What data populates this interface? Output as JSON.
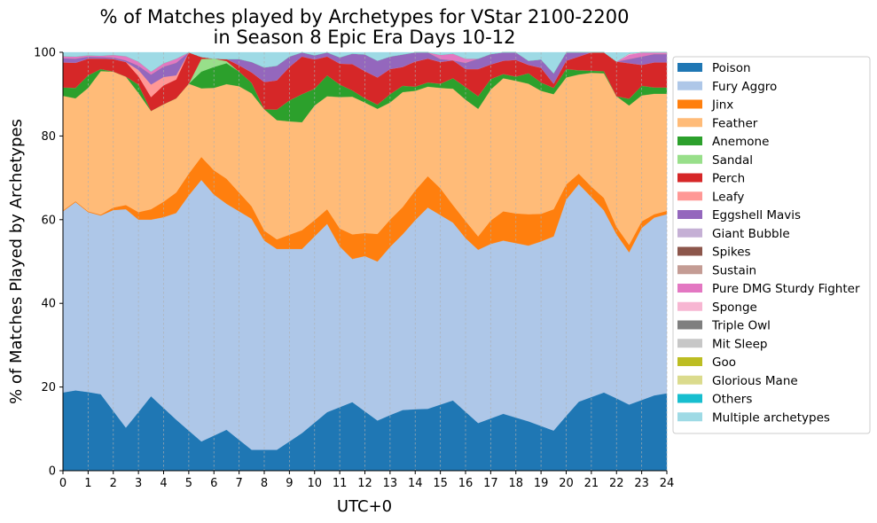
{
  "chart_data": {
    "type": "area",
    "stacked": true,
    "title": [
      "% of Matches played by Archetypes for VStar 2100-2200",
      "in Season 8 Epic Era Days 10-12"
    ],
    "xlabel": "UTC+0",
    "ylabel": "% of Matches Played by Archetypes",
    "xlim": [
      0,
      24
    ],
    "ylim": [
      0,
      100
    ],
    "xticks": [
      0,
      1,
      2,
      3,
      4,
      5,
      6,
      7,
      8,
      9,
      10,
      11,
      12,
      13,
      14,
      15,
      16,
      17,
      18,
      19,
      20,
      21,
      22,
      23,
      24
    ],
    "yticks": [
      0,
      20,
      40,
      60,
      80,
      100
    ],
    "grid": "vertical-dashed",
    "legend_position": "outside-right",
    "x": [
      0,
      0.5,
      1,
      1.5,
      2,
      2.5,
      3,
      3.5,
      4,
      4.5,
      5,
      5.5,
      6,
      6.5,
      7,
      7.5,
      8,
      8.5,
      9,
      9.5,
      10,
      10.5,
      11,
      11.5,
      12,
      12.5,
      13,
      13.5,
      14,
      14.5,
      15,
      15.5,
      16,
      16.5,
      17,
      17.5,
      18,
      18.5,
      19,
      19.5,
      20,
      20.5,
      21,
      21.5,
      22,
      22.5,
      23,
      23.5,
      24
    ],
    "series": [
      {
        "name": "Poison",
        "color": "#1f77b4",
        "values": [
          18.7,
          19.2,
          18.8,
          18.3,
          14.3,
          10.3,
          14.0,
          17.8,
          15.0,
          12.2,
          9.6,
          7.0,
          8.4,
          9.8,
          7.4,
          5.0,
          5.0,
          5.0,
          7.0,
          9.0,
          11.5,
          14.0,
          15.2,
          16.4,
          14.2,
          12.0,
          13.3,
          14.5,
          14.7,
          14.8,
          15.8,
          16.8,
          14.1,
          11.4,
          12.5,
          13.6,
          12.7,
          11.8,
          10.7,
          9.6,
          13.1,
          16.5,
          17.6,
          18.7,
          17.3,
          15.8,
          16.9,
          18.0,
          18.5
        ]
      },
      {
        "name": "Fury Aggro",
        "color": "#aec7e8",
        "values": [
          43.3,
          45.0,
          43.0,
          42.7,
          48.0,
          52.2,
          46.0,
          42.2,
          45.6,
          49.4,
          56.2,
          62.5,
          57.6,
          54.0,
          54.6,
          55.2,
          50.0,
          48.0,
          46.0,
          44.0,
          44.5,
          45.0,
          38.4,
          34.2,
          37.1,
          38.0,
          40.2,
          42.0,
          45.2,
          48.1,
          45.3,
          42.5,
          41.5,
          41.4,
          41.7,
          41.4,
          41.7,
          42.0,
          44.1,
          46.4,
          51.7,
          52.0,
          47.8,
          43.5,
          39.2,
          36.4,
          41.1,
          42.5,
          42.8
        ]
      },
      {
        "name": "Jinx",
        "color": "#ff7f0e",
        "values": [
          0.2,
          0.2,
          0.2,
          0.2,
          0.6,
          1.0,
          1.8,
          2.5,
          3.7,
          4.9,
          5.2,
          5.5,
          5.8,
          6.0,
          4.5,
          3.0,
          2.4,
          2.3,
          3.4,
          4.5,
          3.9,
          3.5,
          4.3,
          5.9,
          5.5,
          6.6,
          6.5,
          6.5,
          7.1,
          7.5,
          6.4,
          4.2,
          4.1,
          3.2,
          5.6,
          7.0,
          7.1,
          7.5,
          6.6,
          6.5,
          3.6,
          2.5,
          2.5,
          3.0,
          1.8,
          1.8,
          1.6,
          0.8,
          0.8
        ]
      },
      {
        "name": "Feather",
        "color": "#ffbb78",
        "values": [
          27.4,
          24.6,
          29.5,
          34.3,
          32.5,
          30.7,
          28.5,
          23.5,
          23.3,
          22.5,
          21.5,
          16.4,
          19.7,
          22.6,
          25.4,
          27.0,
          29.0,
          28.5,
          27.1,
          25.8,
          27.4,
          27.0,
          31.4,
          32.9,
          31.2,
          29.9,
          28.0,
          27.5,
          23.8,
          21.4,
          24.0,
          27.8,
          29.0,
          30.5,
          31.3,
          31.8,
          31.7,
          31.2,
          29.4,
          27.5,
          25.6,
          23.7,
          27.2,
          29.8,
          31.2,
          33.3,
          30.1,
          28.8,
          28.0
        ]
      },
      {
        "name": "Anemone",
        "color": "#2ca02c",
        "values": [
          2.0,
          2.5,
          3.0,
          0.5,
          0.0,
          0.0,
          2.0,
          0.0,
          0.0,
          0.0,
          0.0,
          4.0,
          5.0,
          5.0,
          3.5,
          2.5,
          0.0,
          2.5,
          5.0,
          6.7,
          4.0,
          5.0,
          3.0,
          1.5,
          1.0,
          1.0,
          2.0,
          1.5,
          1.0,
          1.0,
          1.0,
          2.5,
          3.0,
          3.0,
          2.5,
          1.0,
          1.0,
          2.5,
          2.0,
          1.5,
          2.0,
          1.0,
          0.5,
          0.5,
          0.0,
          1.6,
          2.3,
          1.5,
          1.5
        ]
      },
      {
        "name": "Sandal",
        "color": "#98df8a",
        "values": [
          0,
          0,
          0,
          0,
          0,
          0,
          0,
          0,
          0,
          0,
          0,
          3.0,
          2.0,
          0.5,
          0,
          0,
          0,
          0,
          0,
          0,
          0,
          0,
          0,
          0,
          0,
          0,
          0,
          0,
          0,
          0,
          0,
          0,
          0,
          0,
          0,
          0,
          0,
          0,
          0,
          0,
          0,
          0,
          0,
          0,
          0,
          0,
          0,
          0,
          0
        ]
      },
      {
        "name": "Perch",
        "color": "#d62728",
        "values": [
          6.0,
          6.0,
          4.0,
          2.5,
          3.0,
          3.5,
          2.0,
          3.3,
          4.5,
          4.5,
          7.5,
          0.5,
          0.0,
          0.5,
          1.5,
          2.5,
          6.5,
          7.0,
          8.0,
          9.0,
          7.0,
          4.5,
          5.0,
          6.3,
          6.5,
          6.5,
          6.0,
          4.5,
          6.0,
          5.7,
          5.2,
          4.3,
          4.3,
          6.5,
          3.5,
          3.2,
          4.0,
          2.0,
          3.5,
          1.0,
          2.0,
          3.3,
          4.4,
          4.5,
          8.3,
          8.5,
          5.0,
          6.0,
          6.0
        ]
      },
      {
        "name": "Leafy",
        "color": "#ff9896",
        "values": [
          0,
          0,
          0,
          0,
          0,
          0,
          1.5,
          3.0,
          2.0,
          1.0,
          0,
          0,
          0,
          0,
          0,
          0,
          0,
          0,
          0,
          0,
          0,
          0,
          0,
          0,
          0,
          0,
          0,
          0,
          0,
          0,
          0,
          0,
          0,
          0,
          0,
          0,
          0,
          0,
          0,
          0,
          0,
          0,
          0,
          0,
          0,
          0,
          0,
          0,
          0
        ]
      },
      {
        "name": "Eggshell Mavis",
        "color": "#9467bd",
        "values": [
          1.0,
          1.0,
          0.5,
          0.4,
          0.4,
          0.4,
          1.0,
          2.4,
          2.5,
          3.0,
          0.0,
          0.0,
          0.0,
          0.0,
          1.5,
          2.5,
          3.5,
          3.5,
          2.5,
          1.0,
          1.0,
          1.0,
          1.5,
          2.5,
          4.0,
          4.0,
          3.0,
          3.0,
          2.2,
          1.5,
          0.7,
          0.0,
          1.5,
          2.5,
          2.5,
          2.0,
          1.8,
          1.0,
          2.0,
          2.5,
          2.5,
          1.0,
          0.0,
          0.0,
          0.0,
          1.0,
          2.0,
          2.0,
          2.0
        ]
      },
      {
        "name": "Giant Bubble",
        "color": "#c5b0d5",
        "values": [
          0,
          0,
          0,
          0,
          0,
          0,
          0,
          0,
          0,
          0,
          0,
          0,
          0,
          0,
          0,
          0,
          0,
          0,
          0,
          0,
          0,
          0,
          0,
          0,
          0,
          0,
          0,
          0,
          0,
          0,
          0,
          0,
          0,
          0,
          0,
          0,
          0,
          0,
          0,
          0,
          0,
          0,
          0,
          0,
          0,
          0,
          0,
          0,
          0
        ]
      },
      {
        "name": "Spikes",
        "color": "#8c564b",
        "values": [
          0,
          0,
          0,
          0,
          0,
          0,
          0,
          0,
          0,
          0,
          0,
          0,
          0,
          0,
          0,
          0,
          0,
          0,
          0,
          0,
          0,
          0,
          0,
          0,
          0,
          0,
          0,
          0,
          0,
          0,
          0,
          0,
          0,
          0,
          0,
          0,
          0,
          0,
          0,
          0,
          0,
          0,
          0,
          0,
          0,
          0,
          0,
          0,
          0
        ]
      },
      {
        "name": "Sustain",
        "color": "#c49c94",
        "values": [
          0,
          0,
          0,
          0,
          0,
          0,
          0,
          0,
          0,
          0,
          0,
          0,
          0,
          0,
          0,
          0,
          0,
          0,
          0,
          0,
          0,
          0,
          0,
          0,
          0,
          0,
          0,
          0,
          0,
          0,
          0,
          0,
          0,
          0,
          0,
          0,
          0,
          0,
          0,
          0,
          0,
          0,
          0,
          0,
          0,
          0,
          0,
          0,
          0
        ]
      },
      {
        "name": "Pure DMG Sturdy Fighter",
        "color": "#e377c2",
        "values": [
          0.5,
          0.5,
          0.3,
          0.3,
          0.6,
          1.0,
          1.0,
          0.7,
          0.8,
          1.0,
          0,
          0,
          0,
          0,
          0,
          0,
          0,
          0,
          0,
          0,
          0,
          0,
          0,
          0,
          0,
          0,
          0,
          0,
          0,
          0,
          1.0,
          1.6,
          1.0,
          0,
          0,
          0,
          0,
          0,
          0,
          0,
          0,
          0,
          0,
          0,
          0,
          1.0,
          1.0,
          0.4,
          0.4
        ]
      },
      {
        "name": "Sponge",
        "color": "#f7b6d2",
        "values": [
          0,
          0,
          0,
          0,
          0,
          0,
          0,
          0,
          0,
          0,
          0,
          0,
          0,
          0,
          0,
          0,
          0,
          0,
          0,
          0,
          0,
          0,
          0,
          0,
          0,
          0,
          0,
          0,
          0,
          0,
          0,
          0,
          0,
          0,
          0,
          0,
          0,
          0,
          0,
          0,
          0,
          0,
          0,
          0,
          0,
          0.3,
          0.5,
          0,
          0
        ]
      },
      {
        "name": "Triple Owl",
        "color": "#7f7f7f",
        "values": [
          0,
          0,
          0,
          0,
          0,
          0,
          0,
          0,
          0,
          0,
          0,
          0,
          0,
          0,
          0,
          0,
          0,
          0,
          0,
          0,
          0,
          0,
          0,
          0,
          0,
          0,
          0,
          0,
          0,
          0,
          0,
          0,
          0,
          0,
          0,
          0,
          0,
          0,
          0,
          0,
          0,
          0,
          0,
          0,
          0,
          0,
          0,
          0,
          0
        ]
      },
      {
        "name": "Mit Sleep",
        "color": "#c7c7c7",
        "values": [
          0,
          0,
          0,
          0,
          0,
          0,
          0,
          0,
          0,
          0,
          0,
          0,
          0,
          0,
          0,
          0,
          0,
          0,
          0,
          0,
          0,
          0,
          0,
          0,
          0,
          0,
          0,
          0,
          0,
          0,
          0,
          0,
          0,
          0,
          0,
          0,
          0,
          0,
          0,
          0,
          0,
          0,
          0,
          0,
          0,
          0,
          0,
          0,
          0
        ]
      },
      {
        "name": "Goo",
        "color": "#bcbd22",
        "values": [
          0,
          0,
          0,
          0,
          0,
          0,
          0,
          0,
          0,
          0,
          0,
          0,
          0,
          0,
          0,
          0,
          0,
          0,
          0,
          0,
          0,
          0,
          0,
          0,
          0,
          0,
          0,
          0,
          0,
          0,
          0,
          0,
          0,
          0,
          0,
          0,
          0,
          0,
          0,
          0,
          0,
          0,
          0,
          0,
          0,
          0,
          0,
          0,
          0
        ]
      },
      {
        "name": "Glorious Mane",
        "color": "#dbdb8d",
        "values": [
          0,
          0,
          0,
          0,
          0,
          0,
          0,
          0,
          0,
          0,
          0,
          0,
          0,
          0,
          0,
          0,
          0,
          0,
          0,
          0,
          0,
          0,
          0,
          0,
          0,
          0,
          0,
          0,
          0,
          0,
          0,
          0,
          0,
          0,
          0,
          0,
          0,
          0,
          0,
          0,
          0,
          0,
          0,
          0,
          0,
          0,
          0,
          0,
          0
        ]
      },
      {
        "name": "Others",
        "color": "#17becf",
        "values": [
          0,
          0,
          0,
          0,
          0,
          0,
          0,
          0,
          0,
          0,
          0,
          0,
          0,
          0,
          0,
          0,
          0,
          0,
          0,
          0,
          0,
          0,
          0,
          0,
          0,
          0,
          0,
          0,
          0,
          0,
          0,
          0,
          0,
          0,
          0,
          0,
          0,
          0,
          0,
          0,
          0,
          0,
          0,
          0,
          0,
          0,
          0,
          0,
          0
        ]
      },
      {
        "name": "Multiple archetypes",
        "color": "#9edae5",
        "values": [
          0.9,
          1.0,
          0.7,
          0.8,
          0.6,
          0.9,
          2.2,
          4.6,
          2.6,
          1.5,
          0.0,
          1.1,
          1.5,
          1.6,
          1.6,
          2.3,
          3.6,
          3.2,
          1.0,
          4.0,
          0.7,
          0.0,
          1.2,
          0.3,
          0.5,
          2.0,
          1.0,
          0.5,
          0.0,
          0.0,
          0.6,
          0.3,
          1.5,
          1.5,
          0.4,
          0.0,
          0.0,
          2.0,
          1.7,
          5.0,
          0.5,
          0.0,
          0.0,
          0.0,
          0.2,
          0.3,
          0.5,
          0.0,
          0.0
        ]
      }
    ]
  }
}
